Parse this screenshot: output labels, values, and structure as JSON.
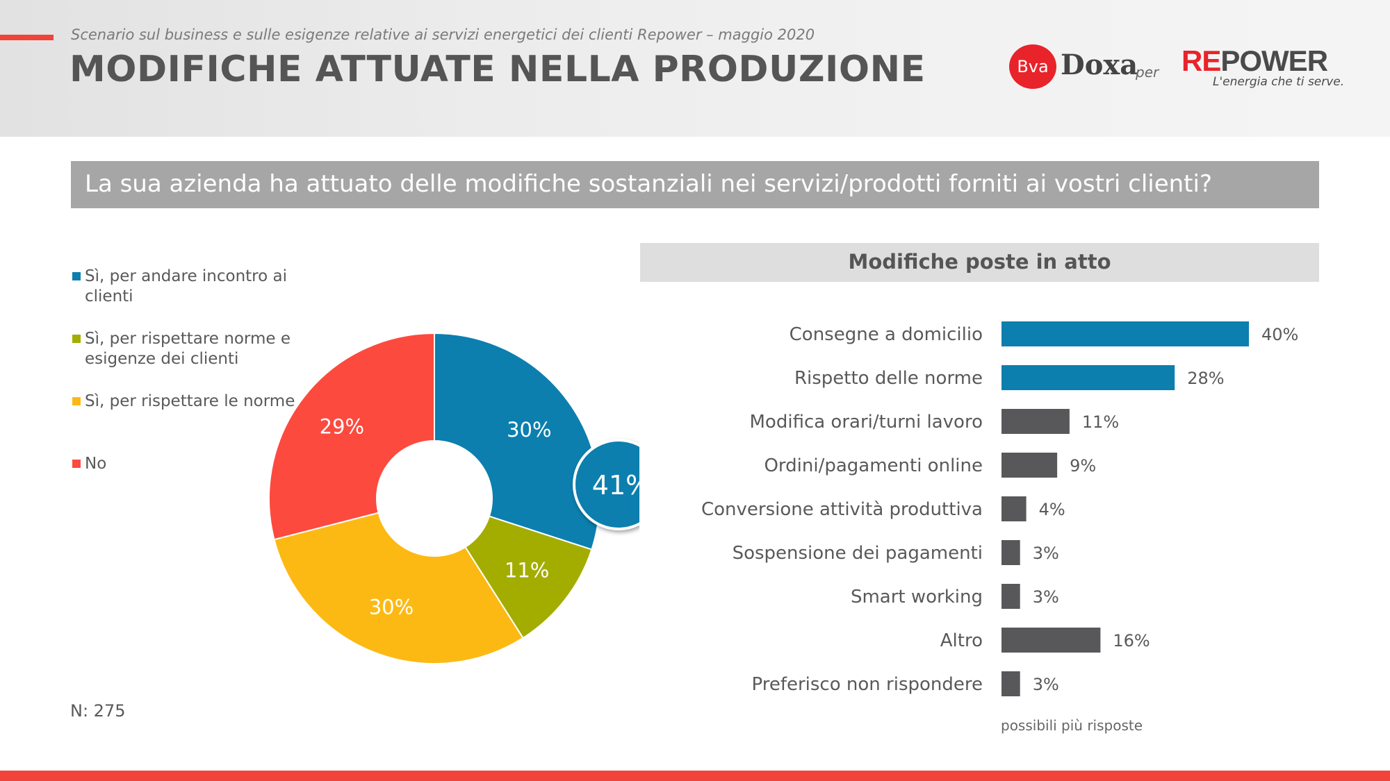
{
  "header": {
    "subtitle": "Scenario sul business e sulle esigenze relative ai servizi energetici dei clienti Repower – maggio 2020",
    "title": "MODIFICHE ATTUATE NELLA PRODUZIONE",
    "logo_bva": "Bva",
    "logo_doxa": "Doxa",
    "logo_per": "per",
    "logo_repower_re": "RE",
    "logo_repower_power": "POWER",
    "logo_repower_tagline": "L'energia che ti serve."
  },
  "question": "La sua azienda ha attuato delle modifiche sostanziali nei servizi/prodotti forniti ai vostri clienti?",
  "right_panel_title": "Modifiche poste in atto",
  "n_label": "N: 275",
  "note": "possibili più risposte",
  "colors": {
    "accent_red": "#f0433a",
    "blue": "#0c7fae",
    "olive": "#a3ad00",
    "yellow": "#fdb913",
    "red": "#fc4a3f",
    "dark_bar": "#58585a"
  },
  "chart_data": [
    {
      "type": "pie",
      "variant": "donut",
      "legend_position": "left",
      "slices": [
        {
          "label": "Sì, per andare incontro ai clienti",
          "value": 30,
          "display": "30%",
          "color": "#0c7fae"
        },
        {
          "label": "Sì, per rispettare norme e esigenze dei clienti",
          "value": 11,
          "display": "11%",
          "color": "#a3ad00"
        },
        {
          "label": "Sì, per rispettare le norme",
          "value": 30,
          "display": "30%",
          "color": "#fdb913"
        },
        {
          "label": "No",
          "value": 29,
          "display": "29%",
          "color": "#fc4a3f"
        }
      ],
      "callout": {
        "value": 41,
        "display": "41%",
        "note_slices": [
          "Sì, per andare incontro ai clienti",
          "Sì, per rispettare norme e esigenze dei clienti"
        ]
      }
    },
    {
      "type": "bar",
      "orientation": "horizontal",
      "title": "Modifiche poste in atto",
      "xlim": [
        0,
        40
      ],
      "categories": [
        "Consegne a domicilio",
        "Rispetto delle norme",
        "Modifica orari/turni lavoro",
        "Ordini/pagamenti online",
        "Conversione attività produttiva",
        "Sospensione dei pagamenti",
        "Smart working",
        "Altro",
        "Preferisco non rispondere"
      ],
      "values": [
        40,
        28,
        11,
        9,
        4,
        3,
        3,
        16,
        3
      ],
      "labels": [
        "40%",
        "28%",
        "11%",
        "9%",
        "4%",
        "3%",
        "3%",
        "16%",
        "3%"
      ],
      "colors": [
        "#0c7fae",
        "#0c7fae",
        "#58585a",
        "#58585a",
        "#58585a",
        "#58585a",
        "#58585a",
        "#58585a",
        "#58585a"
      ]
    }
  ]
}
